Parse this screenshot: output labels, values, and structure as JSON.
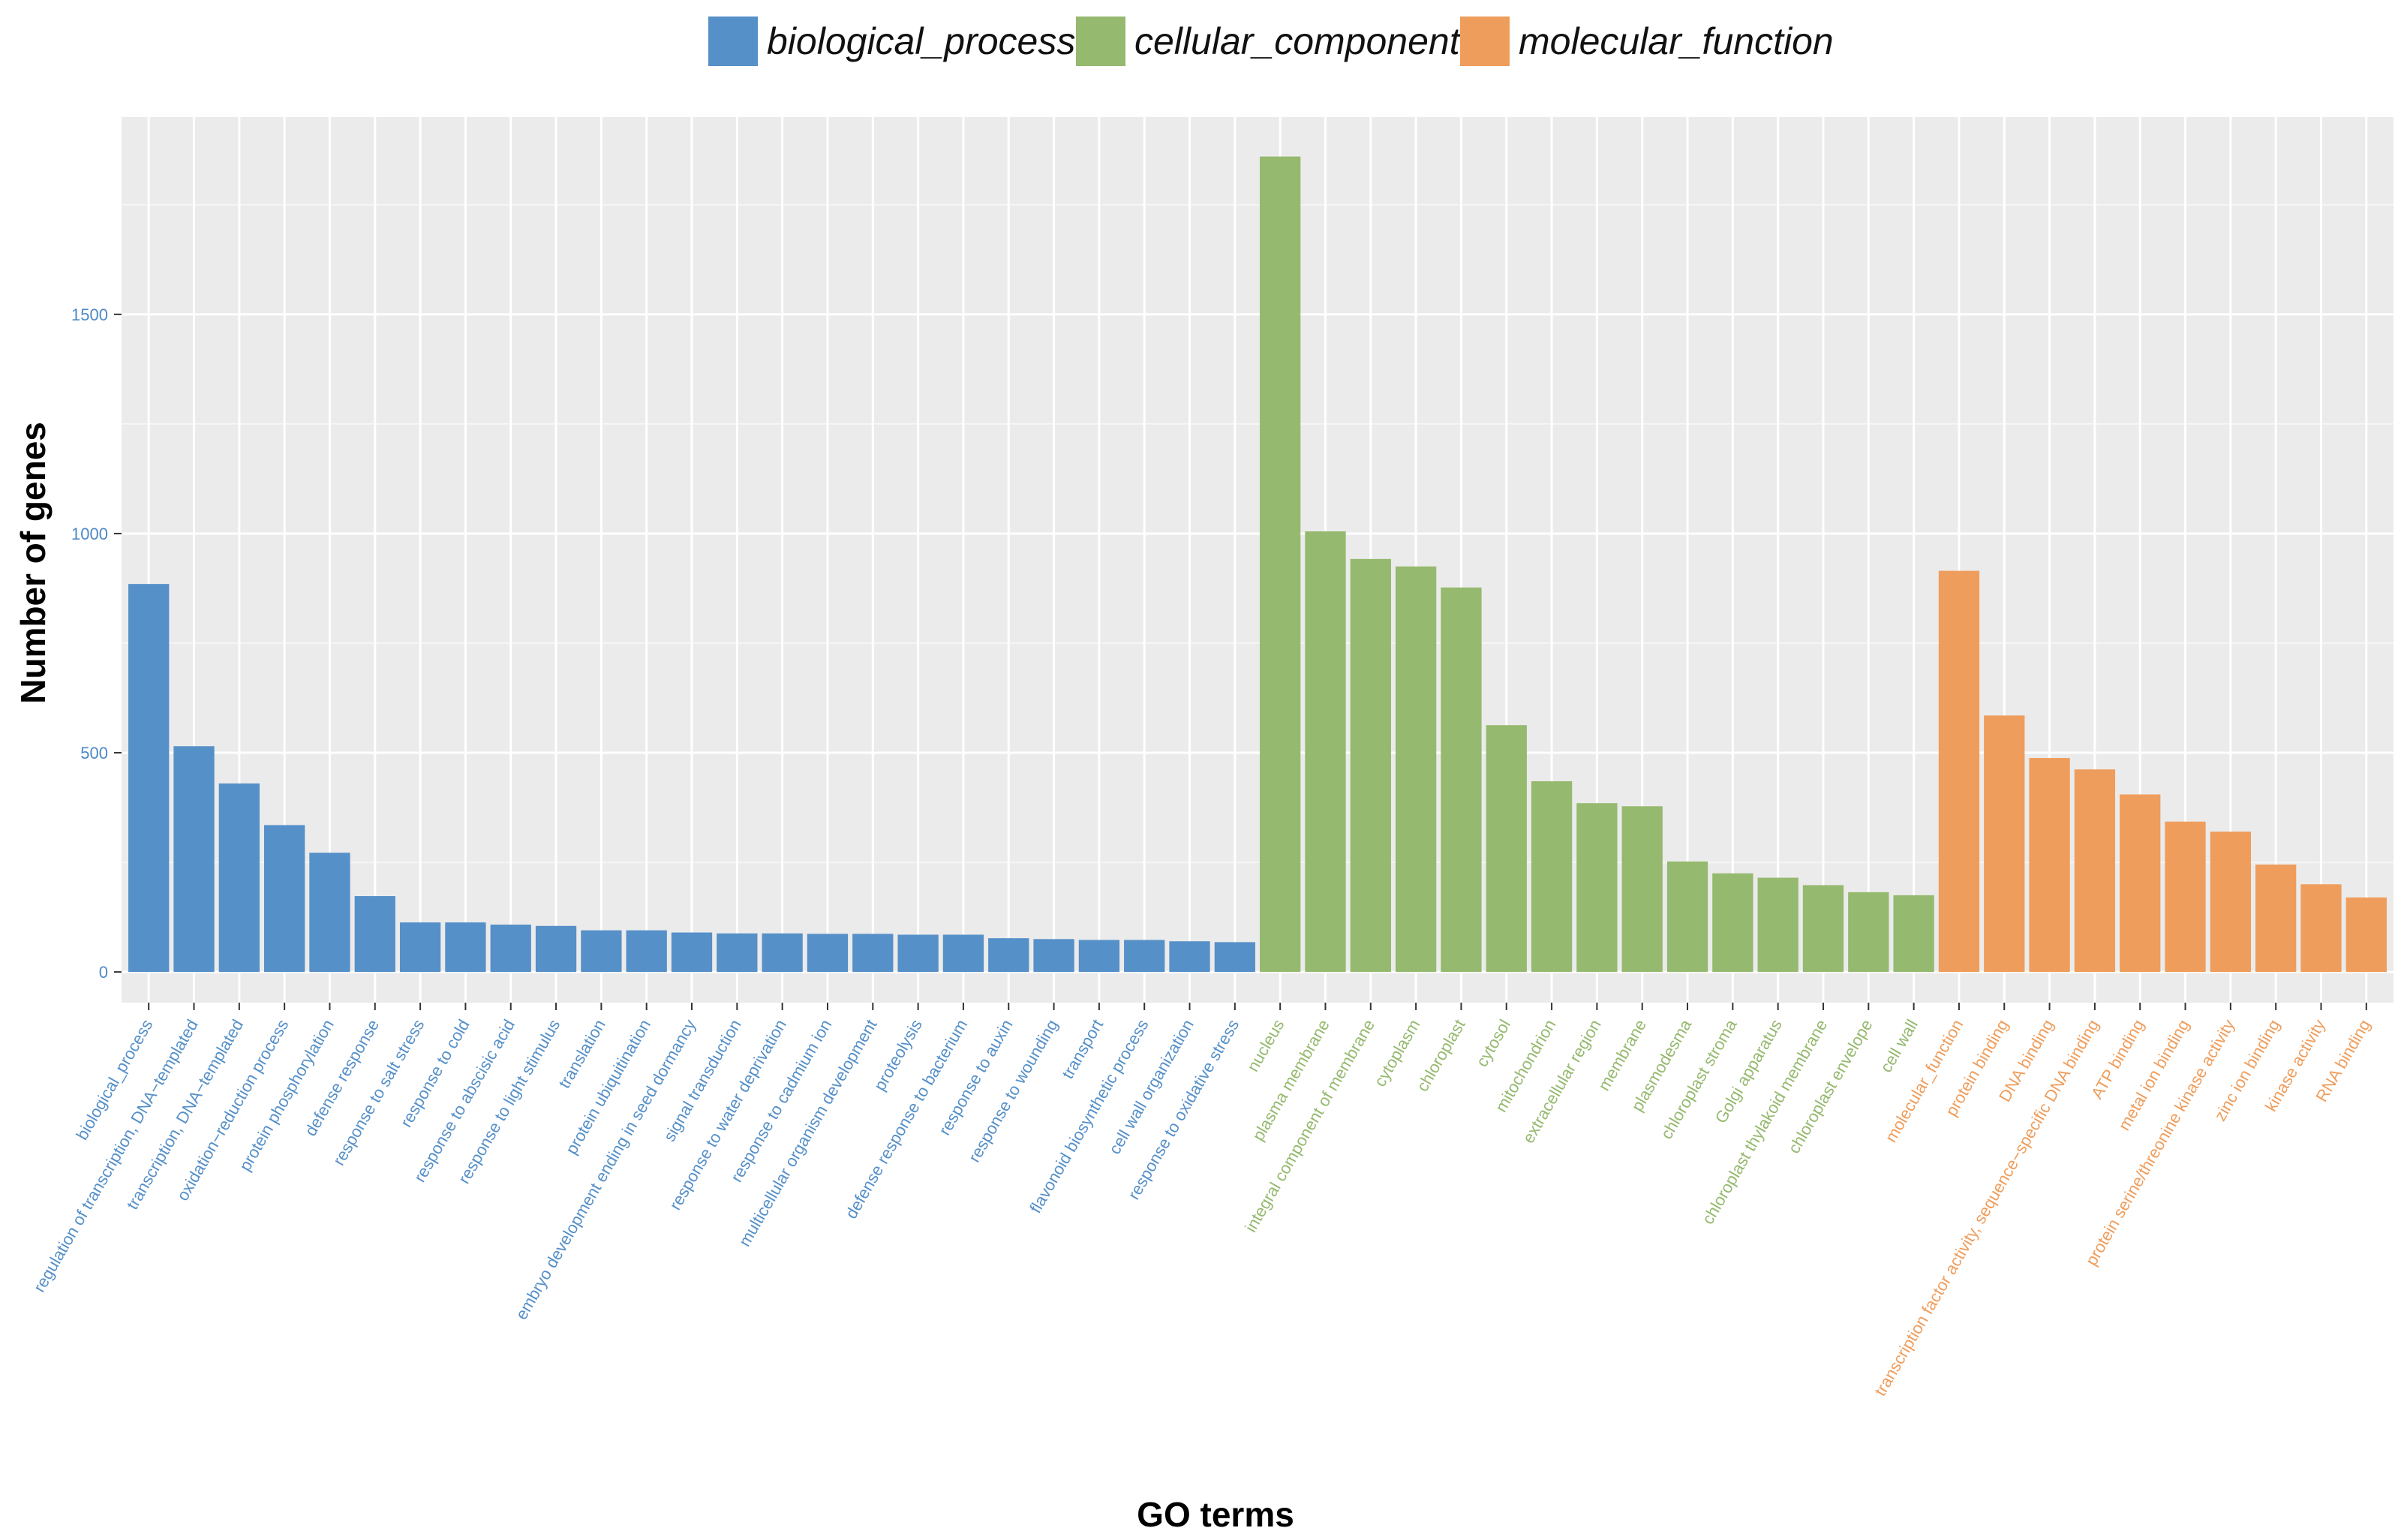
{
  "chart_data": {
    "type": "bar",
    "xlabel": "GO terms",
    "ylabel": "Number of genes",
    "ylim": [
      -70,
      1950
    ],
    "yticks": [
      0,
      500,
      1000,
      1500
    ],
    "grid": true,
    "legend_position": "top",
    "groups": [
      {
        "name": "biological_process",
        "color": "#5690c8"
      },
      {
        "name": "cellular_component",
        "color": "#95b96e"
      },
      {
        "name": "molecular_function",
        "color": "#ef9d5c"
      }
    ],
    "categories": [
      "biological_process",
      "regulation of transcription, DNA−templated",
      "transcription, DNA−templated",
      "oxidation−reduction process",
      "protein phosphorylation",
      "defense response",
      "response to salt stress",
      "response to cold",
      "response to abscisic acid",
      "response to light stimulus",
      "translation",
      "protein ubiquitination",
      "embryo development ending in seed dormancy",
      "signal transduction",
      "response to water deprivation",
      "response to cadmium ion",
      "multicellular organism development",
      "proteolysis",
      "defense response to bacterium",
      "response to auxin",
      "response to wounding",
      "transport",
      "flavonoid biosynthetic process",
      "cell wall organization",
      "response to oxidative stress",
      "nucleus",
      "plasma membrane",
      "integral component of membrane",
      "cytoplasm",
      "chloroplast",
      "cytosol",
      "mitochondrion",
      "extracellular region",
      "membrane",
      "plasmodesma",
      "chloroplast stroma",
      "Golgi apparatus",
      "chloroplast thylakoid membrane",
      "chloroplast envelope",
      "cell wall",
      "molecular_function",
      "protein binding",
      "DNA binding",
      "transcription factor activity, sequence−specific DNA binding",
      "ATP binding",
      "metal ion binding",
      "protein serine/threonine kinase activity",
      "zinc ion binding",
      "kinase activity",
      "RNA binding"
    ],
    "category_groups": [
      "biological_process",
      "biological_process",
      "biological_process",
      "biological_process",
      "biological_process",
      "biological_process",
      "biological_process",
      "biological_process",
      "biological_process",
      "biological_process",
      "biological_process",
      "biological_process",
      "biological_process",
      "biological_process",
      "biological_process",
      "biological_process",
      "biological_process",
      "biological_process",
      "biological_process",
      "biological_process",
      "biological_process",
      "biological_process",
      "biological_process",
      "biological_process",
      "biological_process",
      "cellular_component",
      "cellular_component",
      "cellular_component",
      "cellular_component",
      "cellular_component",
      "cellular_component",
      "cellular_component",
      "cellular_component",
      "cellular_component",
      "cellular_component",
      "cellular_component",
      "cellular_component",
      "cellular_component",
      "cellular_component",
      "cellular_component",
      "molecular_function",
      "molecular_function",
      "molecular_function",
      "molecular_function",
      "molecular_function",
      "molecular_function",
      "molecular_function",
      "molecular_function",
      "molecular_function",
      "molecular_function"
    ],
    "values": [
      885,
      515,
      430,
      335,
      272,
      173,
      113,
      113,
      108,
      105,
      95,
      95,
      90,
      88,
      88,
      87,
      87,
      85,
      85,
      77,
      75,
      73,
      73,
      70,
      68,
      1860,
      1005,
      942,
      925,
      877,
      563,
      435,
      385,
      378,
      252,
      225,
      215,
      198,
      182,
      175,
      915,
      585,
      488,
      462,
      405,
      343,
      320,
      245,
      200,
      170
    ]
  }
}
